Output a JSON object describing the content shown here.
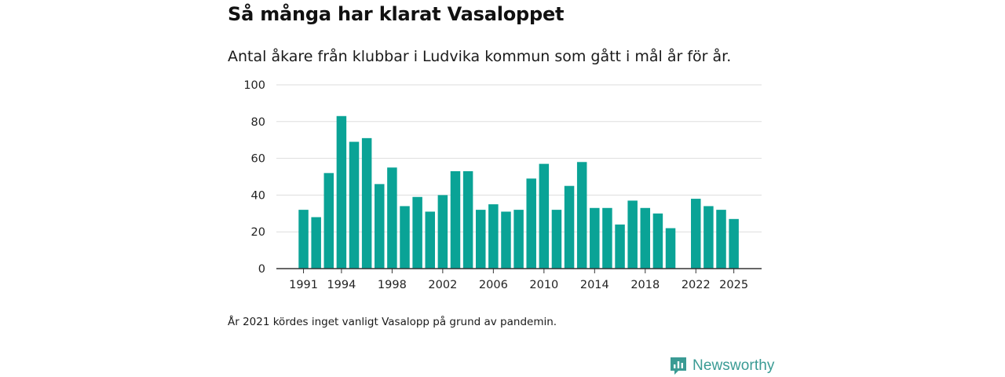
{
  "header": {
    "title": "Så många har klarat Vasaloppet",
    "subtitle": "Antal åkare från klubbar i Ludvika kommun som gått i mål år för år."
  },
  "footer": {
    "note": "År 2021 kördes inget vanligt Vasalopp på grund av pandemin.",
    "brand": "Newsworthy"
  },
  "colors": {
    "bar": "#0aa396",
    "grid": "#dddddd",
    "axis": "#333333",
    "brand": "#3a9b94"
  },
  "chart_data": {
    "type": "bar",
    "title": "Så många har klarat Vasaloppet",
    "xlabel": "",
    "ylabel": "",
    "ylim": [
      0,
      100
    ],
    "y_ticks": [
      0,
      20,
      40,
      60,
      80,
      100
    ],
    "grid": true,
    "categories": [
      1991,
      1992,
      1993,
      1994,
      1995,
      1996,
      1997,
      1998,
      1999,
      2000,
      2001,
      2002,
      2003,
      2004,
      2005,
      2006,
      2007,
      2008,
      2009,
      2010,
      2011,
      2012,
      2013,
      2014,
      2015,
      2016,
      2017,
      2018,
      2019,
      2020,
      2021,
      2022,
      2023,
      2024,
      2025
    ],
    "values": [
      32,
      28,
      52,
      83,
      69,
      71,
      46,
      55,
      34,
      39,
      31,
      40,
      53,
      53,
      32,
      35,
      31,
      32,
      49,
      57,
      32,
      45,
      58,
      33,
      33,
      24,
      37,
      33,
      30,
      22,
      null,
      38,
      34,
      32,
      27
    ],
    "x_tick_labels": [
      "1991",
      "1994",
      "1998",
      "2002",
      "2006",
      "2010",
      "2014",
      "2018",
      "2022",
      "2025"
    ]
  }
}
